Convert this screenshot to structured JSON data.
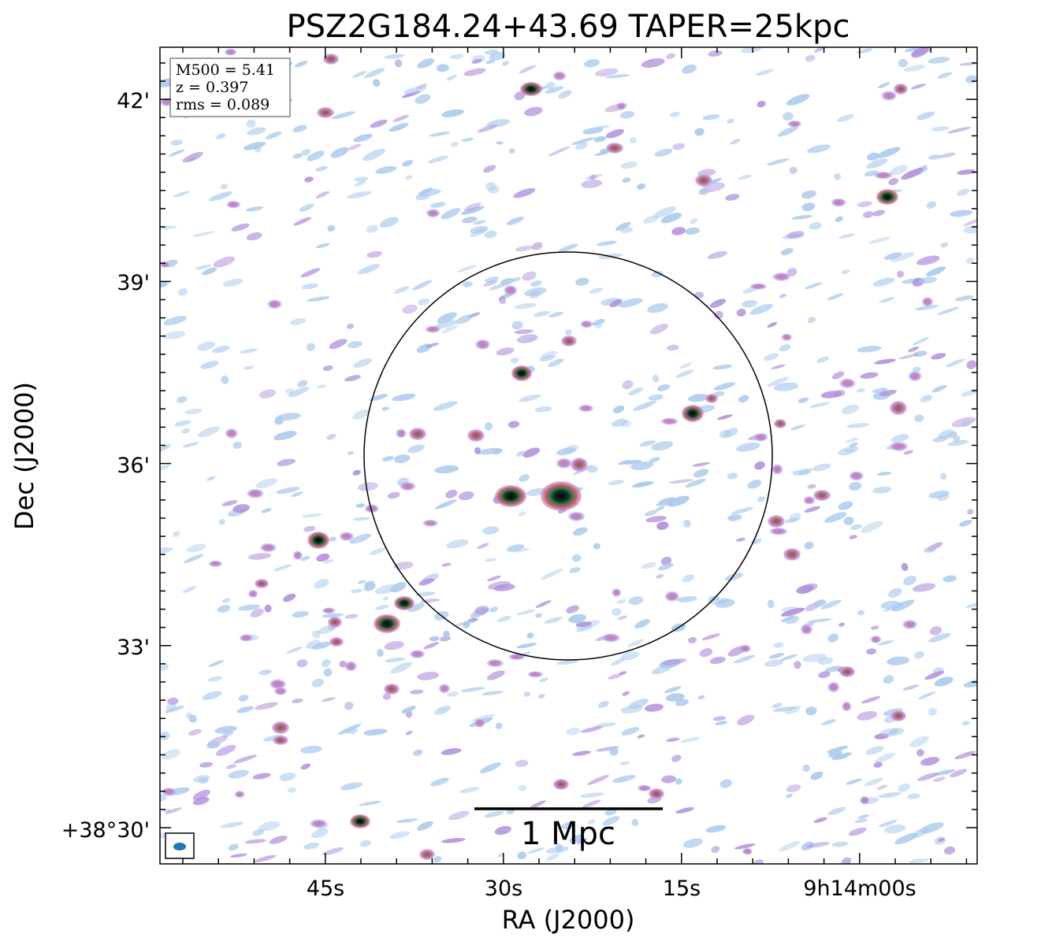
{
  "figure": {
    "title": "PSZ2G184.24+43.69 TAPER=25kpc",
    "xlabel": "RA (J2000)",
    "ylabel": "Dec (J2000)",
    "x_ticks": [
      "45s",
      "30s",
      "15s",
      "9h14m00s"
    ],
    "y_ticks": [
      "42'",
      "39'",
      "36'",
      "33'",
      "+38°30'"
    ],
    "info": {
      "m500": "M500 = 5.41",
      "z": "z = 0.397",
      "rms": "rms = 0.089"
    },
    "scalebar_label": "1 Mpc",
    "colors": {
      "faint": "#a9c9ec",
      "mid": "#b08fdc",
      "bright": "#d06a8a",
      "core": "#2e6e4a",
      "peak": "#000000",
      "beam": "#1f77b4"
    }
  }
}
